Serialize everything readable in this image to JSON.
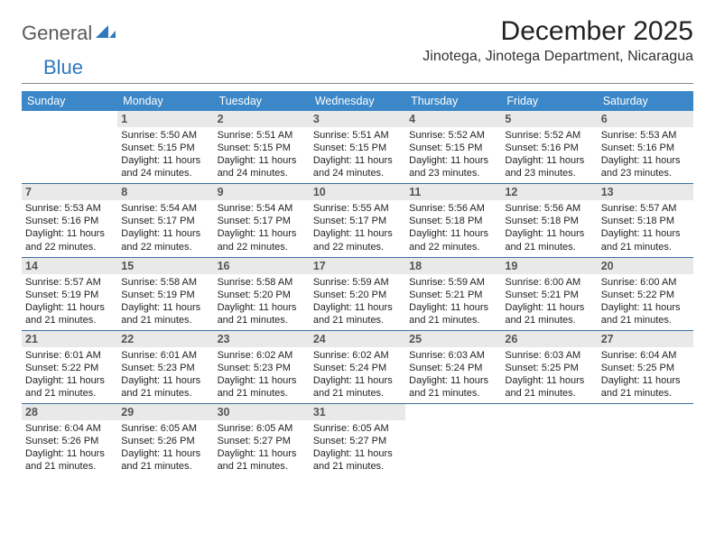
{
  "brand": {
    "part1": "General",
    "part2": "Blue"
  },
  "title": "December 2025",
  "location": "Jinotega, Jinotega Department, Nicaragua",
  "header_bg": "#3b87c8",
  "dayhdr_bg": "#e9e9e9",
  "sep_color": "#3b6fa5",
  "dow": [
    "Sunday",
    "Monday",
    "Tuesday",
    "Wednesday",
    "Thursday",
    "Friday",
    "Saturday"
  ],
  "weeks": [
    [
      null,
      {
        "n": "1",
        "sr": "5:50 AM",
        "ss": "5:15 PM",
        "dl": "11 hours and 24 minutes."
      },
      {
        "n": "2",
        "sr": "5:51 AM",
        "ss": "5:15 PM",
        "dl": "11 hours and 24 minutes."
      },
      {
        "n": "3",
        "sr": "5:51 AM",
        "ss": "5:15 PM",
        "dl": "11 hours and 24 minutes."
      },
      {
        "n": "4",
        "sr": "5:52 AM",
        "ss": "5:15 PM",
        "dl": "11 hours and 23 minutes."
      },
      {
        "n": "5",
        "sr": "5:52 AM",
        "ss": "5:16 PM",
        "dl": "11 hours and 23 minutes."
      },
      {
        "n": "6",
        "sr": "5:53 AM",
        "ss": "5:16 PM",
        "dl": "11 hours and 23 minutes."
      }
    ],
    [
      {
        "n": "7",
        "sr": "5:53 AM",
        "ss": "5:16 PM",
        "dl": "11 hours and 22 minutes."
      },
      {
        "n": "8",
        "sr": "5:54 AM",
        "ss": "5:17 PM",
        "dl": "11 hours and 22 minutes."
      },
      {
        "n": "9",
        "sr": "5:54 AM",
        "ss": "5:17 PM",
        "dl": "11 hours and 22 minutes."
      },
      {
        "n": "10",
        "sr": "5:55 AM",
        "ss": "5:17 PM",
        "dl": "11 hours and 22 minutes."
      },
      {
        "n": "11",
        "sr": "5:56 AM",
        "ss": "5:18 PM",
        "dl": "11 hours and 22 minutes."
      },
      {
        "n": "12",
        "sr": "5:56 AM",
        "ss": "5:18 PM",
        "dl": "11 hours and 21 minutes."
      },
      {
        "n": "13",
        "sr": "5:57 AM",
        "ss": "5:18 PM",
        "dl": "11 hours and 21 minutes."
      }
    ],
    [
      {
        "n": "14",
        "sr": "5:57 AM",
        "ss": "5:19 PM",
        "dl": "11 hours and 21 minutes."
      },
      {
        "n": "15",
        "sr": "5:58 AM",
        "ss": "5:19 PM",
        "dl": "11 hours and 21 minutes."
      },
      {
        "n": "16",
        "sr": "5:58 AM",
        "ss": "5:20 PM",
        "dl": "11 hours and 21 minutes."
      },
      {
        "n": "17",
        "sr": "5:59 AM",
        "ss": "5:20 PM",
        "dl": "11 hours and 21 minutes."
      },
      {
        "n": "18",
        "sr": "5:59 AM",
        "ss": "5:21 PM",
        "dl": "11 hours and 21 minutes."
      },
      {
        "n": "19",
        "sr": "6:00 AM",
        "ss": "5:21 PM",
        "dl": "11 hours and 21 minutes."
      },
      {
        "n": "20",
        "sr": "6:00 AM",
        "ss": "5:22 PM",
        "dl": "11 hours and 21 minutes."
      }
    ],
    [
      {
        "n": "21",
        "sr": "6:01 AM",
        "ss": "5:22 PM",
        "dl": "11 hours and 21 minutes."
      },
      {
        "n": "22",
        "sr": "6:01 AM",
        "ss": "5:23 PM",
        "dl": "11 hours and 21 minutes."
      },
      {
        "n": "23",
        "sr": "6:02 AM",
        "ss": "5:23 PM",
        "dl": "11 hours and 21 minutes."
      },
      {
        "n": "24",
        "sr": "6:02 AM",
        "ss": "5:24 PM",
        "dl": "11 hours and 21 minutes."
      },
      {
        "n": "25",
        "sr": "6:03 AM",
        "ss": "5:24 PM",
        "dl": "11 hours and 21 minutes."
      },
      {
        "n": "26",
        "sr": "6:03 AM",
        "ss": "5:25 PM",
        "dl": "11 hours and 21 minutes."
      },
      {
        "n": "27",
        "sr": "6:04 AM",
        "ss": "5:25 PM",
        "dl": "11 hours and 21 minutes."
      }
    ],
    [
      {
        "n": "28",
        "sr": "6:04 AM",
        "ss": "5:26 PM",
        "dl": "11 hours and 21 minutes."
      },
      {
        "n": "29",
        "sr": "6:05 AM",
        "ss": "5:26 PM",
        "dl": "11 hours and 21 minutes."
      },
      {
        "n": "30",
        "sr": "6:05 AM",
        "ss": "5:27 PM",
        "dl": "11 hours and 21 minutes."
      },
      {
        "n": "31",
        "sr": "6:05 AM",
        "ss": "5:27 PM",
        "dl": "11 hours and 21 minutes."
      },
      null,
      null,
      null
    ]
  ],
  "labels": {
    "sunrise": "Sunrise: ",
    "sunset": "Sunset: ",
    "daylight": "Daylight: "
  }
}
